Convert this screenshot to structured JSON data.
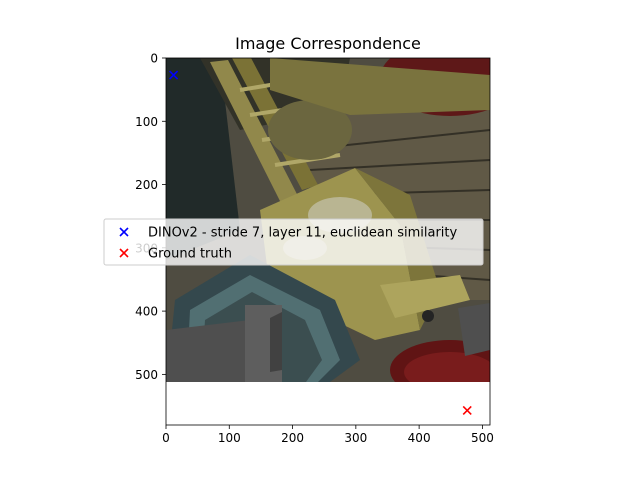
{
  "chart_data": {
    "type": "scatter",
    "title": "Image Correspondence",
    "xlabel": "",
    "ylabel": "",
    "xlim": [
      0,
      512
    ],
    "ylim": [
      580,
      0
    ],
    "image_extent": {
      "width": 512,
      "height": 512
    },
    "xticks": [
      0,
      100,
      200,
      300,
      400,
      500
    ],
    "yticks": [
      0,
      100,
      200,
      300,
      400,
      500
    ],
    "grid": false,
    "legend_position": "center",
    "series": [
      {
        "name": "DINOv2 - stride 7, layer 11, euclidean similarity",
        "marker": "x",
        "color": "#0000ff",
        "points": [
          {
            "x": 12,
            "y": 27
          }
        ]
      },
      {
        "name": "Ground truth",
        "marker": "x",
        "color": "#ff0000",
        "points": [
          {
            "x": 476,
            "y": 557
          }
        ]
      }
    ]
  }
}
